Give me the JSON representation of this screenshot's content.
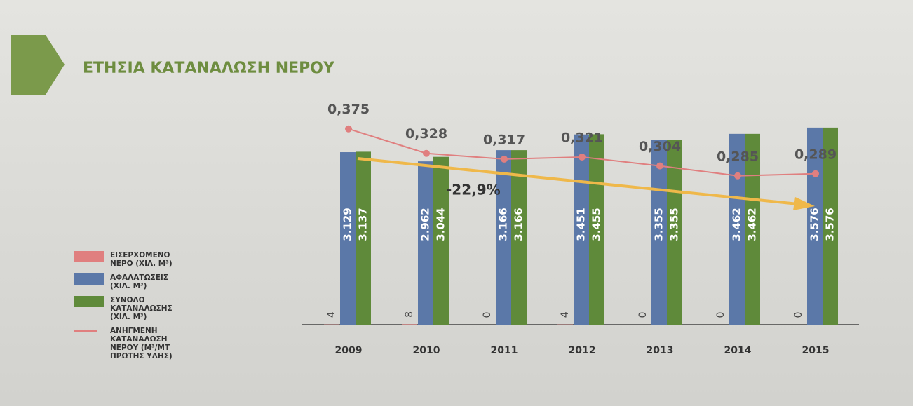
{
  "chart_data": {
    "type": "bar",
    "title": "ΕΤΗΣΙΑ ΚΑΤΑΝΑΛΩΣΗ ΝΕΡΟΥ",
    "categories": [
      "2009",
      "2010",
      "2011",
      "2012",
      "2013",
      "2014",
      "2015"
    ],
    "ylim": [
      0,
      3600
    ],
    "y2lim": [
      0,
      0.38
    ],
    "series": [
      {
        "name": "ΕΙΣΕΡΧΟΜΕΝΟ ΝΕΡΟ (ΧΙΛ. Μ³)",
        "color": "#e07f7f",
        "values": [
          4,
          8,
          0,
          4,
          0,
          0,
          0
        ]
      },
      {
        "name": "ΑΦΑΛΑΤΩΣΕΙΣ (ΧΙΛ. Μ³)",
        "color": "#5b78a8",
        "values": [
          3129,
          2962,
          3166,
          3451,
          3355,
          3462,
          3576
        ],
        "value_labels": [
          "3.129",
          "2.962",
          "3.166",
          "3.451",
          "3.355",
          "3.462",
          "3.576"
        ]
      },
      {
        "name": "ΣΥΝΟΛΟ ΚΑΤΑΝΑΛΩΣΗΣ (ΧΙΛ. Μ³)",
        "color": "#5f8a3a",
        "values": [
          3137,
          3044,
          3166,
          3455,
          3355,
          3462,
          3576
        ],
        "value_labels": [
          "3.137",
          "3.044",
          "3.166",
          "3.455",
          "3.355",
          "3.462",
          "3.576"
        ]
      },
      {
        "name": "ΑΝΗΓΜΕΝΗ ΚΑΤΑΝΑΛΩΣΗ ΝΕΡΟΥ (Μ³/ΜΤ ΠΡΩΤΗΣ ΥΛΗΣ)",
        "color": "#e07f7f",
        "type": "line",
        "axis": "y2",
        "values": [
          0.375,
          0.328,
          0.317,
          0.321,
          0.304,
          0.285,
          0.289
        ],
        "value_labels": [
          "0,375",
          "0,328",
          "0,317",
          "0,321",
          "0,304",
          "0,285",
          "0,289"
        ]
      }
    ],
    "annotation": "-22,9%"
  }
}
